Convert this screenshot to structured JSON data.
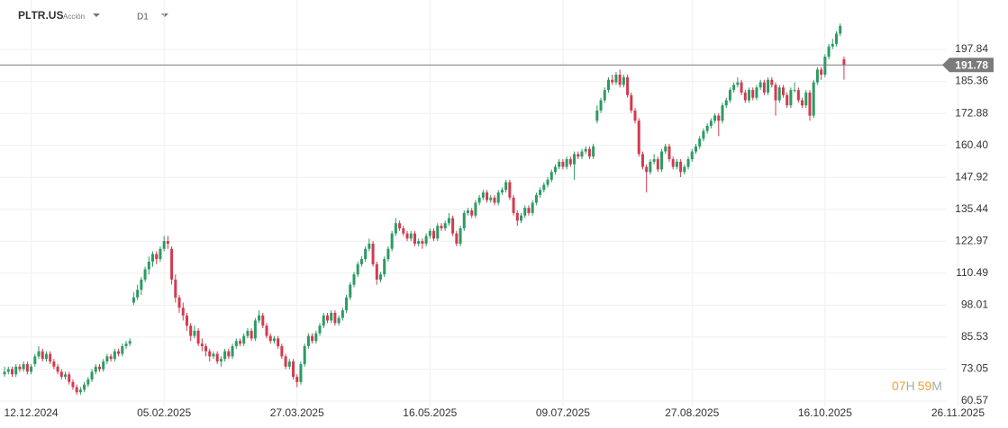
{
  "header": {
    "symbol": "PLTR.US",
    "asset_type": "Acción",
    "timeframe": "D1"
  },
  "countdown": [
    "07",
    "H",
    "59",
    "M"
  ],
  "chart_data": {
    "type": "candlestick",
    "up_color": "#2c9b63",
    "down_color": "#d33a4f",
    "grid": true,
    "ylim": [
      56.36,
      217.15
    ],
    "yticks": [
      60.57,
      73.05,
      85.53,
      98.01,
      110.49,
      122.97,
      135.44,
      147.92,
      {
        "value": 160.4,
        "label": "160.40"
      },
      172.88,
      185.36,
      197.84
    ],
    "xlim": [
      -1.2,
      249
    ],
    "xticks": [
      {
        "value": 7,
        "label": "12.12.2024"
      },
      {
        "value": 42,
        "label": "05.02.2025"
      },
      {
        "value": 77,
        "label": "27.03.2025"
      },
      {
        "value": 112,
        "label": "16.05.2025"
      },
      {
        "value": 147,
        "label": "09.07.2025"
      },
      {
        "value": 181,
        "label": "27.08.2025"
      },
      {
        "value": 216,
        "label": "16.10.2025"
      },
      {
        "value": 251,
        "label": "26.11.2025"
      }
    ],
    "last_price": 191.78,
    "last_price_color": "#7b7b7b",
    "candles": [
      [
        71,
        74,
        70,
        72
      ],
      [
        72,
        74,
        71,
        73
      ],
      [
        73,
        74,
        70,
        71
      ],
      [
        71,
        75,
        70,
        74
      ],
      [
        74,
        75,
        72,
        73
      ],
      [
        73,
        76,
        72,
        75
      ],
      [
        75,
        76,
        71,
        72
      ],
      [
        72,
        75,
        71,
        74
      ],
      [
        75,
        79,
        74,
        78
      ],
      [
        78,
        82,
        77,
        80
      ],
      [
        80,
        81,
        76,
        77
      ],
      [
        77,
        80,
        76,
        79
      ],
      [
        79,
        80,
        75,
        76
      ],
      [
        76,
        77,
        73,
        74
      ],
      [
        74,
        75,
        71,
        72
      ],
      [
        72,
        73,
        69,
        70
      ],
      [
        70,
        72,
        69,
        71
      ],
      [
        71,
        72,
        67,
        68
      ],
      [
        68,
        69,
        65,
        66
      ],
      [
        66,
        67,
        63,
        64
      ],
      [
        64,
        66,
        63,
        65
      ],
      [
        65,
        68,
        64,
        67
      ],
      [
        67,
        70,
        66,
        69
      ],
      [
        69,
        73,
        68,
        72
      ],
      [
        72,
        75,
        71,
        74
      ],
      [
        74,
        75,
        72,
        73
      ],
      [
        73,
        77,
        72,
        76
      ],
      [
        76,
        79,
        75,
        78
      ],
      [
        78,
        79,
        76,
        77
      ],
      [
        77,
        81,
        76,
        80
      ],
      [
        80,
        81,
        78,
        79
      ],
      [
        79,
        83,
        78,
        82
      ],
      [
        82,
        84,
        81,
        83
      ],
      [
        83,
        85,
        82,
        84
      ],
      [
        99,
        103,
        98,
        101
      ],
      [
        101,
        106,
        100,
        104
      ],
      [
        104,
        109,
        102,
        108
      ],
      [
        108,
        113,
        107,
        112
      ],
      [
        112,
        117,
        110,
        115
      ],
      [
        115,
        119,
        113,
        118
      ],
      [
        118,
        119,
        114,
        116
      ],
      [
        116,
        121,
        115,
        120
      ],
      [
        120,
        125,
        119,
        123
      ],
      [
        123,
        125,
        120,
        122
      ],
      [
        120,
        121,
        106,
        108
      ],
      [
        108,
        110,
        99,
        101
      ],
      [
        101,
        102,
        95,
        97
      ],
      [
        97,
        99,
        92,
        94
      ],
      [
        94,
        95,
        88,
        90
      ],
      [
        90,
        91,
        84,
        86
      ],
      [
        86,
        90,
        85,
        88
      ],
      [
        88,
        89,
        82,
        83
      ],
      [
        83,
        85,
        80,
        82
      ],
      [
        82,
        83,
        78,
        80
      ],
      [
        80,
        81,
        76,
        78
      ],
      [
        78,
        80,
        77,
        79
      ],
      [
        79,
        80,
        75,
        76
      ],
      [
        76,
        78,
        74,
        77
      ],
      [
        77,
        81,
        76,
        80
      ],
      [
        80,
        81,
        77,
        78
      ],
      [
        78,
        83,
        77,
        82
      ],
      [
        82,
        85,
        81,
        84
      ],
      [
        84,
        85,
        82,
        83
      ],
      [
        83,
        87,
        82,
        86
      ],
      [
        86,
        89,
        85,
        88
      ],
      [
        88,
        89,
        84,
        85
      ],
      [
        85,
        93,
        84,
        92
      ],
      [
        92,
        96,
        91,
        94
      ],
      [
        94,
        95,
        89,
        90
      ],
      [
        90,
        91,
        85,
        86
      ],
      [
        86,
        87,
        83,
        84
      ],
      [
        84,
        86,
        83,
        85
      ],
      [
        85,
        86,
        81,
        82
      ],
      [
        82,
        83,
        77,
        78
      ],
      [
        78,
        79,
        73,
        74
      ],
      [
        74,
        77,
        73,
        76
      ],
      [
        76,
        77,
        69,
        70
      ],
      [
        70,
        71,
        66,
        68
      ],
      [
        68,
        76,
        67,
        75
      ],
      [
        75,
        83,
        74,
        82
      ],
      [
        82,
        87,
        81,
        86
      ],
      [
        86,
        87,
        83,
        84
      ],
      [
        84,
        88,
        83,
        87
      ],
      [
        87,
        91,
        86,
        90
      ],
      [
        90,
        95,
        89,
        94
      ],
      [
        94,
        95,
        91,
        92
      ],
      [
        92,
        96,
        91,
        95
      ],
      [
        95,
        96,
        90,
        91
      ],
      [
        91,
        94,
        90,
        93
      ],
      [
        93,
        97,
        92,
        96
      ],
      [
        96,
        102,
        95,
        101
      ],
      [
        101,
        107,
        100,
        106
      ],
      [
        106,
        111,
        105,
        110
      ],
      [
        110,
        115,
        109,
        114
      ],
      [
        114,
        117,
        113,
        116
      ],
      [
        116,
        121,
        115,
        120
      ],
      [
        120,
        124,
        119,
        122
      ],
      [
        122,
        123,
        113,
        114
      ],
      [
        114,
        115,
        106,
        108
      ],
      [
        108,
        111,
        107,
        110
      ],
      [
        110,
        117,
        109,
        116
      ],
      [
        116,
        121,
        115,
        120
      ],
      [
        120,
        127,
        119,
        126
      ],
      [
        126,
        132,
        125,
        130
      ],
      [
        130,
        131,
        127,
        128
      ],
      [
        128,
        129,
        125,
        126
      ],
      [
        126,
        127,
        123,
        124
      ],
      [
        124,
        127,
        123,
        126
      ],
      [
        126,
        127,
        121,
        122
      ],
      [
        122,
        124,
        121,
        123
      ],
      [
        123,
        124,
        120,
        122
      ],
      [
        122,
        126,
        121,
        125
      ],
      [
        125,
        128,
        124,
        127
      ],
      [
        127,
        128,
        123,
        124
      ],
      [
        124,
        130,
        123,
        129
      ],
      [
        129,
        130,
        127,
        128
      ],
      [
        128,
        131,
        127,
        130
      ],
      [
        130,
        134,
        129,
        132
      ],
      [
        132,
        133,
        125,
        126
      ],
      [
        126,
        127,
        121,
        122
      ],
      [
        122,
        129,
        121,
        128
      ],
      [
        128,
        135,
        127,
        134
      ],
      [
        134,
        136,
        133,
        135
      ],
      [
        135,
        136,
        132,
        133
      ],
      [
        133,
        139,
        132,
        138
      ],
      [
        138,
        141,
        137,
        140
      ],
      [
        140,
        143,
        139,
        142
      ],
      [
        142,
        143,
        138,
        139
      ],
      [
        139,
        141,
        138,
        140
      ],
      [
        140,
        141,
        137,
        138
      ],
      [
        138,
        143,
        137,
        142
      ],
      [
        142,
        144,
        141,
        143
      ],
      [
        143,
        147,
        142,
        146
      ],
      [
        146,
        147,
        139,
        140
      ],
      [
        140,
        141,
        133,
        134
      ],
      [
        134,
        135,
        129,
        131
      ],
      [
        131,
        134,
        130,
        133
      ],
      [
        133,
        137,
        132,
        136
      ],
      [
        136,
        137,
        133,
        134
      ],
      [
        134,
        139,
        133,
        138
      ],
      [
        138,
        142,
        137,
        141
      ],
      [
        141,
        144,
        140,
        143
      ],
      [
        143,
        146,
        142,
        145
      ],
      [
        145,
        148,
        144,
        147
      ],
      [
        147,
        151,
        146,
        150
      ],
      [
        150,
        153,
        149,
        152
      ],
      [
        152,
        155,
        151,
        154
      ],
      [
        154,
        155,
        151,
        152
      ],
      [
        152,
        156,
        151,
        155
      ],
      [
        155,
        156,
        152,
        153
      ],
      [
        153,
        158,
        147,
        157
      ],
      [
        157,
        158,
        155,
        156
      ],
      [
        156,
        159,
        155,
        158
      ],
      [
        158,
        160,
        157,
        159
      ],
      [
        159,
        160,
        155,
        156
      ],
      [
        156,
        161,
        155,
        160
      ],
      [
        170,
        176,
        169,
        174
      ],
      [
        174,
        179,
        173,
        178
      ],
      [
        178,
        183,
        177,
        182
      ],
      [
        182,
        187,
        181,
        186
      ],
      [
        186,
        188,
        184,
        185
      ],
      [
        185,
        189,
        184,
        188
      ],
      [
        188,
        190,
        183,
        184
      ],
      [
        184,
        188,
        183,
        187
      ],
      [
        187,
        188,
        179,
        180
      ],
      [
        180,
        181,
        173,
        174
      ],
      [
        174,
        175,
        169,
        170
      ],
      [
        170,
        171,
        156,
        157
      ],
      [
        157,
        158,
        151,
        152
      ],
      [
        152,
        153,
        142,
        150
      ],
      [
        150,
        155,
        149,
        154
      ],
      [
        154,
        157,
        153,
        155
      ],
      [
        155,
        156,
        150,
        151
      ],
      [
        151,
        159,
        150,
        158
      ],
      [
        158,
        161,
        157,
        160
      ],
      [
        160,
        161,
        154,
        155
      ],
      [
        155,
        156,
        151,
        152
      ],
      [
        152,
        155,
        151,
        154
      ],
      [
        154,
        155,
        148,
        150
      ],
      [
        150,
        153,
        149,
        152
      ],
      [
        152,
        156,
        151,
        155
      ],
      [
        155,
        159,
        154,
        158
      ],
      [
        158,
        161,
        157,
        160
      ],
      [
        160,
        164,
        159,
        163
      ],
      [
        163,
        167,
        162,
        166
      ],
      [
        166,
        169,
        165,
        168
      ],
      [
        168,
        171,
        167,
        170
      ],
      [
        170,
        173,
        169,
        172
      ],
      [
        172,
        173,
        164,
        170
      ],
      [
        170,
        177,
        169,
        176
      ],
      [
        176,
        179,
        175,
        178
      ],
      [
        178,
        183,
        177,
        182
      ],
      [
        182,
        185,
        181,
        184
      ],
      [
        184,
        187,
        183,
        185
      ],
      [
        185,
        186,
        180,
        181
      ],
      [
        181,
        182,
        177,
        178
      ],
      [
        178,
        183,
        177,
        182
      ],
      [
        182,
        183,
        178,
        179
      ],
      [
        179,
        184,
        178,
        183
      ],
      [
        183,
        186,
        182,
        185
      ],
      [
        185,
        186,
        180,
        181
      ],
      [
        181,
        187,
        180,
        186
      ],
      [
        186,
        187,
        183,
        184
      ],
      [
        184,
        185,
        172,
        178
      ],
      [
        178,
        184,
        177,
        183
      ],
      [
        183,
        184,
        179,
        180
      ],
      [
        180,
        181,
        175,
        176
      ],
      [
        176,
        183,
        175,
        182
      ],
      [
        182,
        185,
        181,
        182
      ],
      [
        182,
        183,
        177,
        178
      ],
      [
        178,
        179,
        175,
        176
      ],
      [
        176,
        182,
        175,
        181
      ],
      [
        181,
        182,
        170,
        172
      ],
      [
        172,
        186,
        171,
        185
      ],
      [
        185,
        191,
        184,
        190
      ],
      [
        190,
        191,
        186,
        188
      ],
      [
        188,
        196,
        187,
        195
      ],
      [
        195,
        200,
        194,
        199
      ],
      [
        199,
        202,
        198,
        200
      ],
      [
        200,
        205,
        199,
        204
      ],
      [
        204,
        208,
        203,
        207
      ],
      [
        194,
        195,
        186,
        191.78
      ]
    ]
  }
}
